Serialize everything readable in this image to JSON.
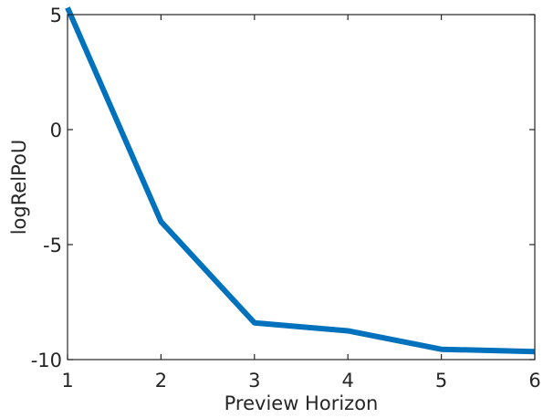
{
  "chart_data": {
    "type": "line",
    "title": "",
    "xlabel": "Preview Horizon",
    "ylabel": "logRelPoU",
    "x": [
      1,
      2,
      3,
      4,
      5,
      6
    ],
    "series": [
      {
        "name": "",
        "color": "#0072BD",
        "values": [
          5.3,
          -4.0,
          -8.4,
          -8.75,
          -9.55,
          -9.65
        ]
      }
    ],
    "xlim": [
      1,
      6
    ],
    "ylim": [
      -10,
      5
    ],
    "xticks": [
      1,
      2,
      3,
      4,
      5,
      6
    ],
    "xtick_labels": [
      "1",
      "2",
      "3",
      "4",
      "5",
      "6"
    ],
    "yticks": [
      -10,
      -5,
      0,
      5
    ],
    "ytick_labels": [
      "-10",
      "-5",
      "0",
      "5"
    ],
    "grid": false,
    "box": true
  }
}
